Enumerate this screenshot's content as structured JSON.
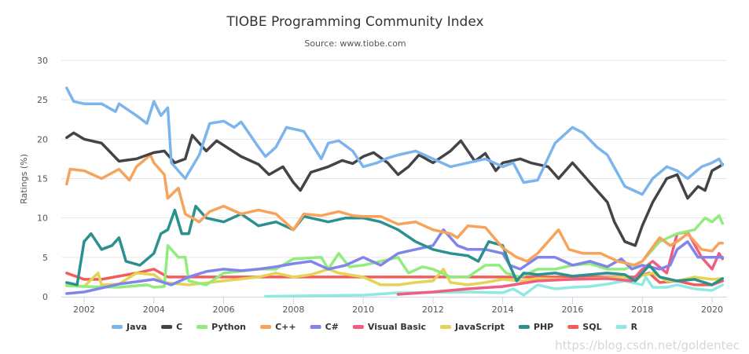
{
  "chart_data": {
    "type": "line",
    "title": "TIOBE Programming Community Index",
    "subtitle": "Source: www.tiobe.com",
    "xlabel": "",
    "ylabel": "Ratings (%)",
    "xlim": [
      2001.45,
      2020.3
    ],
    "ylim": [
      0,
      30
    ],
    "xticks": [
      "2002",
      "2004",
      "2006",
      "2008",
      "2010",
      "2012",
      "2014",
      "2016",
      "2018",
      "2020"
    ],
    "yticks": [
      "0",
      "5",
      "10",
      "15",
      "20",
      "25",
      "30"
    ],
    "grid": true,
    "legend": "bottom",
    "series": [
      {
        "name": "Java",
        "color": "#7cb5ec",
        "x": [
          2001.5,
          2001.7,
          2002,
          2002.5,
          2002.9,
          2003,
          2003.5,
          2003.8,
          2004,
          2004.2,
          2004.4,
          2004.5,
          2004.9,
          2005.3,
          2005.6,
          2006,
          2006.3,
          2006.5,
          2007,
          2007.2,
          2007.5,
          2007.8,
          2008,
          2008.3,
          2008.8,
          2009,
          2009.3,
          2009.7,
          2010,
          2010.4,
          2010.7,
          2011,
          2011.5,
          2012,
          2012.5,
          2013,
          2013.5,
          2014,
          2014.3,
          2014.6,
          2015,
          2015.5,
          2016,
          2016.3,
          2016.7,
          2017,
          2017.5,
          2018,
          2018.3,
          2018.7,
          2019,
          2019.3,
          2019.7,
          2020,
          2020.2,
          2020.3
        ],
        "y": [
          26.5,
          24.8,
          24.5,
          24.5,
          23.5,
          24.5,
          23,
          22,
          24.8,
          23,
          24,
          17,
          15,
          18,
          22,
          22.3,
          21.5,
          22.2,
          19,
          17.8,
          19,
          21.5,
          21.3,
          21,
          17.5,
          19.5,
          19.8,
          18.5,
          16.5,
          17,
          17.6,
          18,
          18.5,
          17.5,
          16.5,
          17,
          17.5,
          16.5,
          17,
          14.5,
          14.8,
          19.5,
          21.5,
          20.8,
          19,
          18,
          14,
          13,
          15,
          16.5,
          16,
          15,
          16.5,
          17,
          17.5,
          16.7
        ]
      },
      {
        "name": "C",
        "color": "#434348",
        "x": [
          2001.5,
          2001.7,
          2002,
          2002.5,
          2003,
          2003.5,
          2004,
          2004.3,
          2004.6,
          2004.9,
          2005.1,
          2005.5,
          2005.8,
          2006.5,
          2007,
          2007.3,
          2007.7,
          2008,
          2008.2,
          2008.5,
          2009,
          2009.4,
          2009.7,
          2010,
          2010.3,
          2010.7,
          2011,
          2011.3,
          2011.6,
          2012,
          2012.5,
          2012.8,
          2013.2,
          2013.5,
          2013.8,
          2014,
          2014.5,
          2014.8,
          2015.3,
          2015.6,
          2016,
          2016.3,
          2016.7,
          2017,
          2017.2,
          2017.5,
          2017.8,
          2018,
          2018.3,
          2018.7,
          2019,
          2019.3,
          2019.6,
          2019.8,
          2020,
          2020.2,
          2020.3
        ],
        "y": [
          20.2,
          20.8,
          20,
          19.5,
          17.2,
          17.5,
          18.3,
          18.5,
          17,
          17.5,
          20.5,
          18.5,
          19.8,
          17.8,
          16.8,
          15.5,
          16.5,
          14.5,
          13.5,
          15.8,
          16.5,
          17.3,
          16.9,
          17.8,
          18.3,
          17,
          15.5,
          16.5,
          18,
          17,
          18.5,
          19.8,
          17.2,
          18.2,
          16,
          17,
          17.5,
          17,
          16.5,
          15,
          17,
          15.5,
          13.5,
          12,
          9.5,
          7,
          6.5,
          9,
          12,
          15,
          15.5,
          12.5,
          14,
          13.5,
          16,
          16.5,
          16.8
        ]
      },
      {
        "name": "Python",
        "color": "#90ed7d",
        "x": [
          2001.5,
          2002,
          2003,
          2003.8,
          2004,
          2004.3,
          2004.4,
          2004.7,
          2004.9,
          2005,
          2005.5,
          2006,
          2007,
          2007.5,
          2008,
          2008.8,
          2009,
          2009.3,
          2009.6,
          2010,
          2010.5,
          2011,
          2011.3,
          2011.7,
          2012,
          2012.5,
          2013,
          2013.5,
          2013.9,
          2014.1,
          2014.5,
          2015,
          2015.5,
          2016,
          2016.5,
          2017,
          2017.5,
          2018,
          2018.5,
          2019,
          2019.5,
          2019.8,
          2020,
          2020.2,
          2020.3
        ],
        "y": [
          1.4,
          1.3,
          1.2,
          1.5,
          1.2,
          1.3,
          6.5,
          5,
          5,
          2,
          1.5,
          3,
          3.5,
          3.5,
          4.8,
          5,
          3.5,
          5.5,
          3.8,
          4,
          4.5,
          5,
          3,
          3.8,
          3.5,
          2.5,
          2.5,
          4,
          4,
          3,
          2.5,
          3.5,
          3.5,
          4,
          4.2,
          3.5,
          3.5,
          4.5,
          7,
          8,
          8.5,
          10,
          9.5,
          10.3,
          9.3
        ]
      },
      {
        "name": "C++",
        "color": "#f7a35c",
        "x": [
          2001.5,
          2001.6,
          2002,
          2002.5,
          2003,
          2003.3,
          2003.5,
          2003.9,
          2004,
          2004.3,
          2004.4,
          2004.7,
          2004.9,
          2005.3,
          2005.6,
          2006,
          2006.5,
          2007,
          2007.5,
          2008,
          2008.3,
          2008.8,
          2009.3,
          2009.7,
          2010,
          2010.5,
          2011,
          2011.5,
          2012,
          2012.5,
          2012.7,
          2013,
          2013.5,
          2014,
          2014.4,
          2014.7,
          2015,
          2015.6,
          2015.9,
          2016.3,
          2016.8,
          2017.3,
          2017.8,
          2018,
          2018.5,
          2018.8,
          2019,
          2019.3,
          2019.7,
          2020,
          2020.2,
          2020.3
        ],
        "y": [
          14.3,
          16.2,
          16,
          15,
          16.2,
          14.8,
          16.5,
          18,
          17,
          15.5,
          12.5,
          13.8,
          10.5,
          9.5,
          10.8,
          11.5,
          10.5,
          11,
          10.5,
          8.5,
          10.5,
          10.3,
          10.8,
          10.3,
          10.2,
          10.2,
          9.2,
          9.5,
          8.5,
          8,
          7.5,
          9,
          8.8,
          6.2,
          5,
          4.5,
          5.5,
          8.5,
          6,
          5.5,
          5.5,
          4.5,
          4,
          4.5,
          7.5,
          6.5,
          7,
          8,
          6,
          5.8,
          6.8,
          6.8
        ]
      },
      {
        "name": "C#",
        "color": "#8085e9",
        "x": [
          2001.5,
          2002,
          2003,
          2004,
          2004.5,
          2005,
          2005.5,
          2006,
          2006.5,
          2007,
          2007.5,
          2008,
          2008.5,
          2009,
          2009.5,
          2010,
          2010.5,
          2011,
          2011.5,
          2012,
          2012.3,
          2012.7,
          2013,
          2013.5,
          2014,
          2014.2,
          2014.5,
          2015,
          2015.5,
          2016,
          2016.5,
          2017,
          2017.4,
          2017.7,
          2018,
          2018.5,
          2018.8,
          2019,
          2019.3,
          2019.6,
          2020,
          2020.3
        ],
        "y": [
          0.4,
          0.6,
          1.6,
          2.2,
          1.5,
          2.5,
          3.2,
          3.5,
          3.3,
          3.5,
          3.8,
          4.2,
          4.5,
          3.5,
          4,
          5,
          4,
          5.5,
          6,
          6.5,
          8.5,
          6.5,
          6,
          6,
          5.5,
          4,
          3.5,
          5,
          5,
          4,
          4.5,
          3.8,
          4.8,
          3.5,
          4,
          3.5,
          4,
          6,
          7,
          5,
          5,
          5
        ]
      },
      {
        "name": "Visual Basic",
        "color": "#f15c80",
        "x": [
          2011,
          2012,
          2013,
          2014,
          2015,
          2016,
          2017,
          2017.7,
          2018,
          2018.3,
          2018.7,
          2019,
          2019.3,
          2019.7,
          2020,
          2020.2,
          2020.3
        ],
        "y": [
          0.3,
          0.6,
          1,
          1.3,
          2,
          2.2,
          2.3,
          2,
          3.5,
          4.5,
          3,
          8,
          8.2,
          5,
          3.5,
          5.5,
          4.8
        ]
      },
      {
        "name": "JavaScript",
        "color": "#e4d354",
        "x": [
          2001.5,
          2002,
          2002.4,
          2002.5,
          2003,
          2003.5,
          2004,
          2004.3,
          2005,
          2006,
          2007,
          2007.5,
          2008,
          2008.5,
          2009,
          2009.3,
          2010,
          2010.5,
          2011,
          2011.5,
          2012,
          2012.3,
          2012.5,
          2013,
          2013.5,
          2014,
          2014.5,
          2015,
          2016,
          2017,
          2017.5,
          2017.8,
          2018,
          2018.3,
          2018.7,
          2019,
          2019.5,
          2020,
          2020.3
        ],
        "y": [
          1.5,
          1.3,
          3,
          1.5,
          1.6,
          3,
          2.8,
          1.8,
          1.5,
          2,
          2.5,
          3,
          2.5,
          2.8,
          3.5,
          3,
          2.5,
          1.5,
          1.5,
          1.8,
          2,
          3.5,
          1.8,
          1.5,
          1.8,
          2.2,
          2,
          2.3,
          2.2,
          2.4,
          2.5,
          2,
          2.7,
          3,
          2,
          2,
          2.5,
          2.2,
          2.3
        ]
      },
      {
        "name": "PHP",
        "color": "#2b908f",
        "x": [
          2001.5,
          2001.8,
          2002,
          2002.2,
          2002.5,
          2002.8,
          2003,
          2003.2,
          2003.6,
          2004,
          2004.2,
          2004.4,
          2004.6,
          2004.8,
          2005,
          2005.2,
          2005.5,
          2006,
          2006.5,
          2007,
          2007.5,
          2008,
          2008.3,
          2008.5,
          2009,
          2009.5,
          2010,
          2010.5,
          2011,
          2011.5,
          2012,
          2012.5,
          2013,
          2013.3,
          2013.6,
          2014,
          2014.2,
          2014.4,
          2014.6,
          2015,
          2015.5,
          2016,
          2016.5,
          2017,
          2017.5,
          2017.8,
          2018,
          2018.2,
          2018.5,
          2019,
          2019.5,
          2020,
          2020.3
        ],
        "y": [
          1.8,
          1.5,
          7,
          8,
          6,
          6.5,
          7.5,
          4.5,
          4,
          5.5,
          8,
          8.5,
          11,
          8,
          8,
          11.5,
          10,
          9.5,
          10.5,
          9,
          9.5,
          8.5,
          10.2,
          10,
          9.5,
          10,
          10,
          9.5,
          8.5,
          7,
          6,
          5.5,
          5.2,
          4.5,
          7,
          6.5,
          4,
          2,
          3,
          2.8,
          3,
          2.6,
          2.8,
          3,
          2.8,
          2,
          3,
          4,
          2.5,
          2,
          2.2,
          1.5,
          2.3
        ]
      },
      {
        "name": "SQL",
        "color": "#f45b5b",
        "x": [
          2001.5,
          2002,
          2002.5,
          2003,
          2003.5,
          2004,
          2004.4,
          2010,
          2017.8,
          2018.2,
          2018.5,
          2019,
          2019.5,
          2020,
          2020.3
        ],
        "y": [
          3,
          2.2,
          2.2,
          2.6,
          3,
          3.5,
          2.5,
          2.5,
          2.5,
          3,
          1.8,
          2,
          1.5,
          1.5,
          2
        ]
      },
      {
        "name": "R",
        "color": "#91e8e1",
        "x": [
          2007.2,
          2010,
          2011,
          2013,
          2014,
          2014.3,
          2014.6,
          2015,
          2015.5,
          2016,
          2016.5,
          2017,
          2017.5,
          2018,
          2018.1,
          2018.3,
          2018.7,
          2019,
          2019.5,
          2020,
          2020.3
        ],
        "y": [
          0.05,
          0.2,
          0.5,
          0.6,
          0.5,
          1,
          0.2,
          1.5,
          1,
          1.2,
          1.3,
          1.6,
          2,
          1.5,
          2.5,
          1.2,
          1.2,
          1.5,
          1,
          0.8,
          1.5
        ]
      }
    ]
  },
  "watermark": "https://blog.csdn.net/goldentec"
}
